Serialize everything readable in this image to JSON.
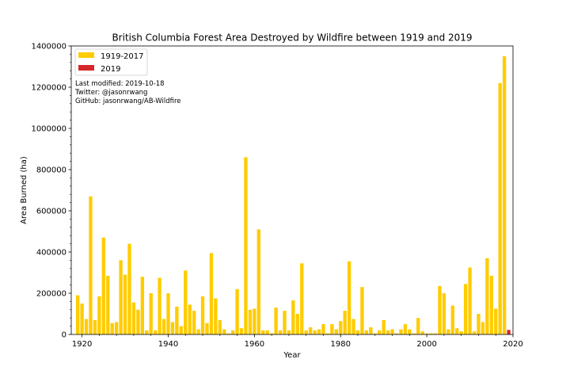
{
  "chart_data": {
    "type": "bar",
    "title": "British Columbia Forest Area Destroyed by Wildfire between 1919 and 2019",
    "xlabel": "Year",
    "ylabel": "Area Burned (ha)",
    "xlim": [
      1917.5,
      2020
    ],
    "ylim": [
      0,
      1400000
    ],
    "x_ticks": [
      1920,
      1940,
      1960,
      1980,
      2000,
      2020
    ],
    "y_ticks": [
      0,
      200000,
      400000,
      600000,
      800000,
      1000000,
      1200000,
      1400000
    ],
    "x_tick_labels": [
      "1920",
      "1940",
      "1960",
      "1980",
      "2000",
      "2020"
    ],
    "y_tick_labels": [
      "0",
      "200000",
      "400000",
      "600000",
      "800000",
      "1000000",
      "1200000",
      "1400000"
    ],
    "grid": false,
    "legend_position": "top-left",
    "series": [
      {
        "name": "1919-2017",
        "color": "#ffcc00",
        "x": [
          1919,
          1920,
          1921,
          1922,
          1923,
          1924,
          1925,
          1926,
          1927,
          1928,
          1929,
          1930,
          1931,
          1932,
          1933,
          1934,
          1935,
          1936,
          1937,
          1938,
          1939,
          1940,
          1941,
          1942,
          1943,
          1944,
          1945,
          1946,
          1947,
          1948,
          1949,
          1950,
          1951,
          1952,
          1953,
          1954,
          1955,
          1956,
          1957,
          1958,
          1959,
          1960,
          1961,
          1962,
          1963,
          1964,
          1965,
          1966,
          1967,
          1968,
          1969,
          1970,
          1971,
          1972,
          1973,
          1974,
          1975,
          1976,
          1977,
          1978,
          1979,
          1980,
          1981,
          1982,
          1983,
          1984,
          1985,
          1986,
          1987,
          1988,
          1989,
          1990,
          1991,
          1992,
          1993,
          1994,
          1995,
          1996,
          1997,
          1998,
          1999,
          2000,
          2001,
          2002,
          2003,
          2004,
          2005,
          2006,
          2007,
          2008,
          2009,
          2010,
          2011,
          2012,
          2013,
          2014,
          2015,
          2016,
          2017
        ],
        "values": [
          190000,
          150000,
          75000,
          670000,
          70000,
          185000,
          470000,
          285000,
          55000,
          60000,
          360000,
          290000,
          440000,
          155000,
          120000,
          280000,
          20000,
          200000,
          20000,
          275000,
          75000,
          200000,
          60000,
          135000,
          40000,
          310000,
          145000,
          115000,
          25000,
          185000,
          55000,
          395000,
          175000,
          70000,
          25000,
          5000,
          20000,
          220000,
          30000,
          860000,
          120000,
          125000,
          510000,
          20000,
          20000,
          5000,
          130000,
          20000,
          115000,
          20000,
          165000,
          100000,
          345000,
          20000,
          35000,
          20000,
          25000,
          50000,
          5000,
          50000,
          25000,
          65000,
          115000,
          355000,
          75000,
          20000,
          230000,
          20000,
          35000,
          5000,
          20000,
          70000,
          20000,
          25000,
          5000,
          25000,
          50000,
          25000,
          5000,
          80000,
          15000,
          5000,
          5000,
          5000,
          235000,
          200000,
          25000,
          140000,
          30000,
          15000,
          245000,
          325000,
          15000,
          100000,
          60000,
          370000,
          285000,
          125000,
          1220000
        ]
      },
      {
        "name": "2019",
        "color": "#d62728",
        "x": [
          2019
        ],
        "values": [
          22000
        ]
      },
      {
        "name": "",
        "color": "#ffcc00",
        "x": [
          2018
        ],
        "values": [
          1350000
        ]
      }
    ],
    "annotations": [
      "Last modified: 2019-10-18",
      "Twitter: @jasonrwang",
      "GitHub: jasonrwang/AB-Wildfire"
    ]
  }
}
